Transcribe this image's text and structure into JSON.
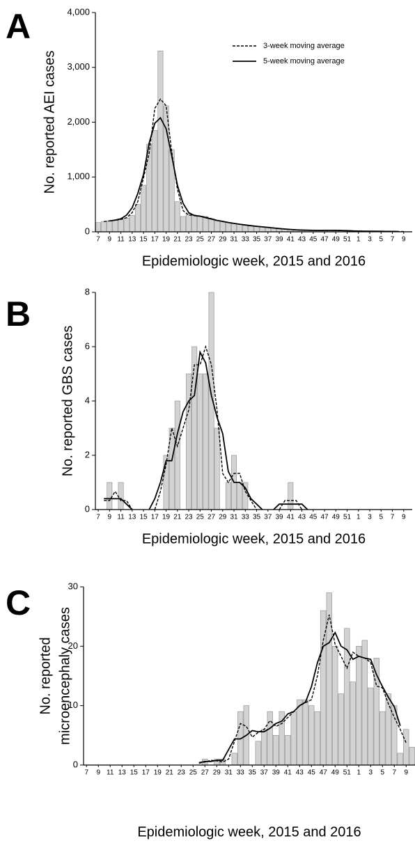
{
  "chart_data": [
    {
      "type": "bar_line",
      "panel_label": "A",
      "ylabel": "No. reported AEI cases",
      "xlabel": "Epidemiologic week, 2015 and 2016",
      "legend": "upper right",
      "categories": [
        "7",
        null,
        "9",
        null,
        "11",
        null,
        "13",
        null,
        "15",
        null,
        "17",
        null,
        "19",
        null,
        "21",
        null,
        "23",
        null,
        "25",
        null,
        "27",
        null,
        "29",
        null,
        "31",
        null,
        "33",
        null,
        "35",
        null,
        "37",
        null,
        "39",
        null,
        "41",
        null,
        "43",
        null,
        "45",
        null,
        "47",
        null,
        "49",
        null,
        "51",
        null,
        "1",
        null,
        "3",
        null,
        "5",
        null,
        "7",
        null,
        "9",
        null
      ],
      "ylim": [
        0,
        4000
      ],
      "yticks": [
        0,
        {
          "value": 1000,
          "label": "1,000"
        },
        {
          "value": 2000,
          "label": "2,000"
        },
        {
          "value": 3000,
          "label": "3,000"
        },
        {
          "value": 4000,
          "label": "4,000"
        }
      ],
      "bars": {
        "color": "#d3d3d3",
        "values": [
          170,
          190,
          200,
          210,
          220,
          250,
          300,
          500,
          850,
          1600,
          1850,
          3300,
          2300,
          1500,
          550,
          280,
          330,
          300,
          280,
          280,
          240,
          200,
          190,
          170,
          150,
          140,
          120,
          110,
          100,
          90,
          80,
          70,
          60,
          50,
          40,
          35,
          30,
          30,
          25,
          25,
          25,
          30,
          30,
          25,
          20,
          15,
          15,
          10,
          10,
          10,
          10,
          8,
          8,
          5,
          5,
          5
        ]
      },
      "series": [
        {
          "name": "3-week moving average",
          "style": "dashed",
          "color": "#000000",
          "values": [
            null,
            187,
            200,
            210,
            227,
            257,
            350,
            550,
            983,
            1433,
            2250,
            2420,
            2300,
            1450,
            777,
            387,
            303,
            303,
            287,
            267,
            240,
            210,
            187,
            170,
            153,
            137,
            123,
            110,
            100,
            90,
            80,
            70,
            60,
            50,
            42,
            35,
            32,
            28,
            27,
            25,
            27,
            28,
            28,
            25,
            20,
            17,
            13,
            12,
            10,
            10,
            9,
            9,
            7,
            6,
            5,
            null
          ]
        },
        {
          "name": "5-week moving average",
          "style": "solid",
          "color": "#000000",
          "values": [
            null,
            null,
            198,
            214,
            238,
            304,
            440,
            700,
            1048,
            1620,
            1980,
            2080,
            1880,
            1386,
            850,
            520,
            348,
            296,
            286,
            258,
            234,
            208,
            190,
            170,
            154,
            138,
            124,
            112,
            100,
            90,
            80,
            70,
            60,
            51,
            43,
            36,
            32,
            29,
            27,
            26,
            27,
            27,
            26,
            24,
            21,
            17,
            14,
            12,
            11,
            10,
            9,
            8,
            7,
            6,
            null,
            null
          ]
        }
      ]
    },
    {
      "type": "bar_line",
      "panel_label": "B",
      "ylabel": "No. reported GBS cases",
      "xlabel": "Epidemiologic week, 2015 and 2016",
      "categories": [
        "7",
        null,
        "9",
        null,
        "11",
        null,
        "13",
        null,
        "15",
        null,
        "17",
        null,
        "19",
        null,
        "21",
        null,
        "23",
        null,
        "25",
        null,
        "27",
        null,
        "29",
        null,
        "31",
        null,
        "33",
        null,
        "35",
        null,
        "37",
        null,
        "39",
        null,
        "41",
        null,
        "43",
        null,
        "45",
        null,
        "47",
        null,
        "49",
        null,
        "51",
        null,
        "1",
        null,
        "3",
        null,
        "5",
        null,
        "7",
        null,
        "9",
        null
      ],
      "ylim": [
        0,
        8
      ],
      "yticks": [
        0,
        2,
        4,
        6,
        8
      ],
      "bars": {
        "color": "#d3d3d3",
        "values": [
          0,
          0,
          1,
          0,
          1,
          0,
          0,
          0,
          0,
          0,
          0,
          0,
          2,
          3,
          4,
          0,
          5,
          6,
          5,
          5,
          8,
          3,
          0,
          1,
          2,
          1,
          1,
          0,
          0,
          0,
          0,
          0,
          0,
          0,
          1,
          0,
          0,
          0,
          0,
          0,
          0,
          0,
          0,
          0,
          0,
          0,
          0,
          0,
          0,
          0,
          0,
          0,
          0,
          0,
          0,
          0
        ]
      },
      "series": [
        {
          "style": "dashed",
          "color": "#000000",
          "values": [
            null,
            0.33,
            0.33,
            0.67,
            0.33,
            0.33,
            0,
            null,
            null,
            null,
            0,
            0.67,
            1.67,
            3,
            2.33,
            3,
            3.67,
            5.33,
            5.33,
            6,
            5.33,
            3.67,
            1.33,
            1,
            1.33,
            1.33,
            0.67,
            0.33,
            0,
            null,
            null,
            null,
            0,
            0.33,
            0.33,
            0.33,
            0,
            null,
            null,
            null,
            null,
            null,
            null,
            null,
            null,
            null,
            null,
            null,
            null,
            null,
            null,
            null,
            null,
            null,
            null,
            null
          ]
        },
        {
          "style": "solid",
          "color": "#000000",
          "values": [
            null,
            0.4,
            0.4,
            0.4,
            0.4,
            0.2,
            0,
            null,
            null,
            0,
            0.4,
            1,
            1.8,
            1.8,
            2.8,
            3.6,
            4,
            4.2,
            5.8,
            5.4,
            4.2,
            3.4,
            2.8,
            1.4,
            1,
            1,
            0.8,
            0.4,
            0.2,
            0,
            null,
            0,
            0.2,
            0.2,
            0.2,
            0.2,
            0.2,
            0,
            null,
            null,
            null,
            null,
            null,
            null,
            null,
            null,
            null,
            null,
            null,
            null,
            null,
            null,
            null,
            null,
            null,
            null
          ]
        }
      ]
    },
    {
      "type": "bar_line",
      "panel_label": "C",
      "ylabel": [
        "No. reported",
        "microencephaly cases"
      ],
      "xlabel": "Epidemiologic week, 2015 and 2016",
      "categories": [
        "7",
        null,
        "9",
        null,
        "11",
        null,
        "13",
        null,
        "15",
        null,
        "17",
        null,
        "19",
        null,
        "21",
        null,
        "23",
        null,
        "25",
        null,
        "27",
        null,
        "29",
        null,
        "31",
        null,
        "33",
        null,
        "35",
        null,
        "37",
        null,
        "39",
        null,
        "41",
        null,
        "43",
        null,
        "45",
        null,
        "47",
        null,
        "49",
        null,
        "51",
        null,
        "1",
        null,
        "3",
        null,
        "5",
        null,
        "7",
        null,
        "9",
        null
      ],
      "ylim": [
        0,
        30
      ],
      "yticks": [
        0,
        10,
        20,
        30
      ],
      "bars": {
        "color": "#d3d3d3",
        "values": [
          0,
          0,
          0,
          0,
          0,
          0,
          0,
          0,
          0,
          0,
          0,
          0,
          0,
          0,
          0,
          0,
          0,
          0,
          0,
          0,
          1,
          0,
          1,
          1,
          0,
          2,
          9,
          10,
          0,
          4,
          6,
          9,
          5,
          9,
          5,
          9,
          11,
          11,
          10,
          9,
          26,
          29,
          20,
          12,
          23,
          14,
          20,
          21,
          13,
          18,
          9,
          12,
          10,
          2,
          6,
          3
        ]
      },
      "series": [
        {
          "style": "dashed",
          "color": "#000000",
          "values": [
            null,
            null,
            null,
            null,
            null,
            null,
            null,
            null,
            null,
            null,
            null,
            null,
            null,
            null,
            null,
            null,
            null,
            null,
            null,
            0.3,
            0.5,
            0.8,
            0.7,
            0.5,
            1,
            4,
            7,
            6.5,
            4.7,
            5.5,
            6,
            7.5,
            6.5,
            7,
            8,
            9,
            10,
            10.5,
            11,
            15,
            21,
            25.3,
            20.3,
            18.3,
            16.3,
            19,
            18.3,
            18,
            17.3,
            13.3,
            13,
            10.3,
            8,
            6,
            3.7,
            null
          ]
        },
        {
          "style": "solid",
          "color": "#000000",
          "values": [
            null,
            null,
            null,
            null,
            null,
            null,
            null,
            null,
            null,
            null,
            null,
            null,
            null,
            null,
            null,
            null,
            null,
            null,
            null,
            0.4,
            0.6,
            0.6,
            0.8,
            0.8,
            2.6,
            4.4,
            4.4,
            5,
            5.8,
            5.6,
            5.6,
            6.2,
            7,
            7.4,
            8.6,
            9,
            10,
            10.6,
            13.2,
            17.2,
            20,
            20.6,
            22.3,
            20,
            19.4,
            17.8,
            18.3,
            18,
            17.8,
            15.2,
            13.2,
            11.4,
            9.8,
            6.6,
            null,
            null
          ]
        }
      ]
    }
  ]
}
